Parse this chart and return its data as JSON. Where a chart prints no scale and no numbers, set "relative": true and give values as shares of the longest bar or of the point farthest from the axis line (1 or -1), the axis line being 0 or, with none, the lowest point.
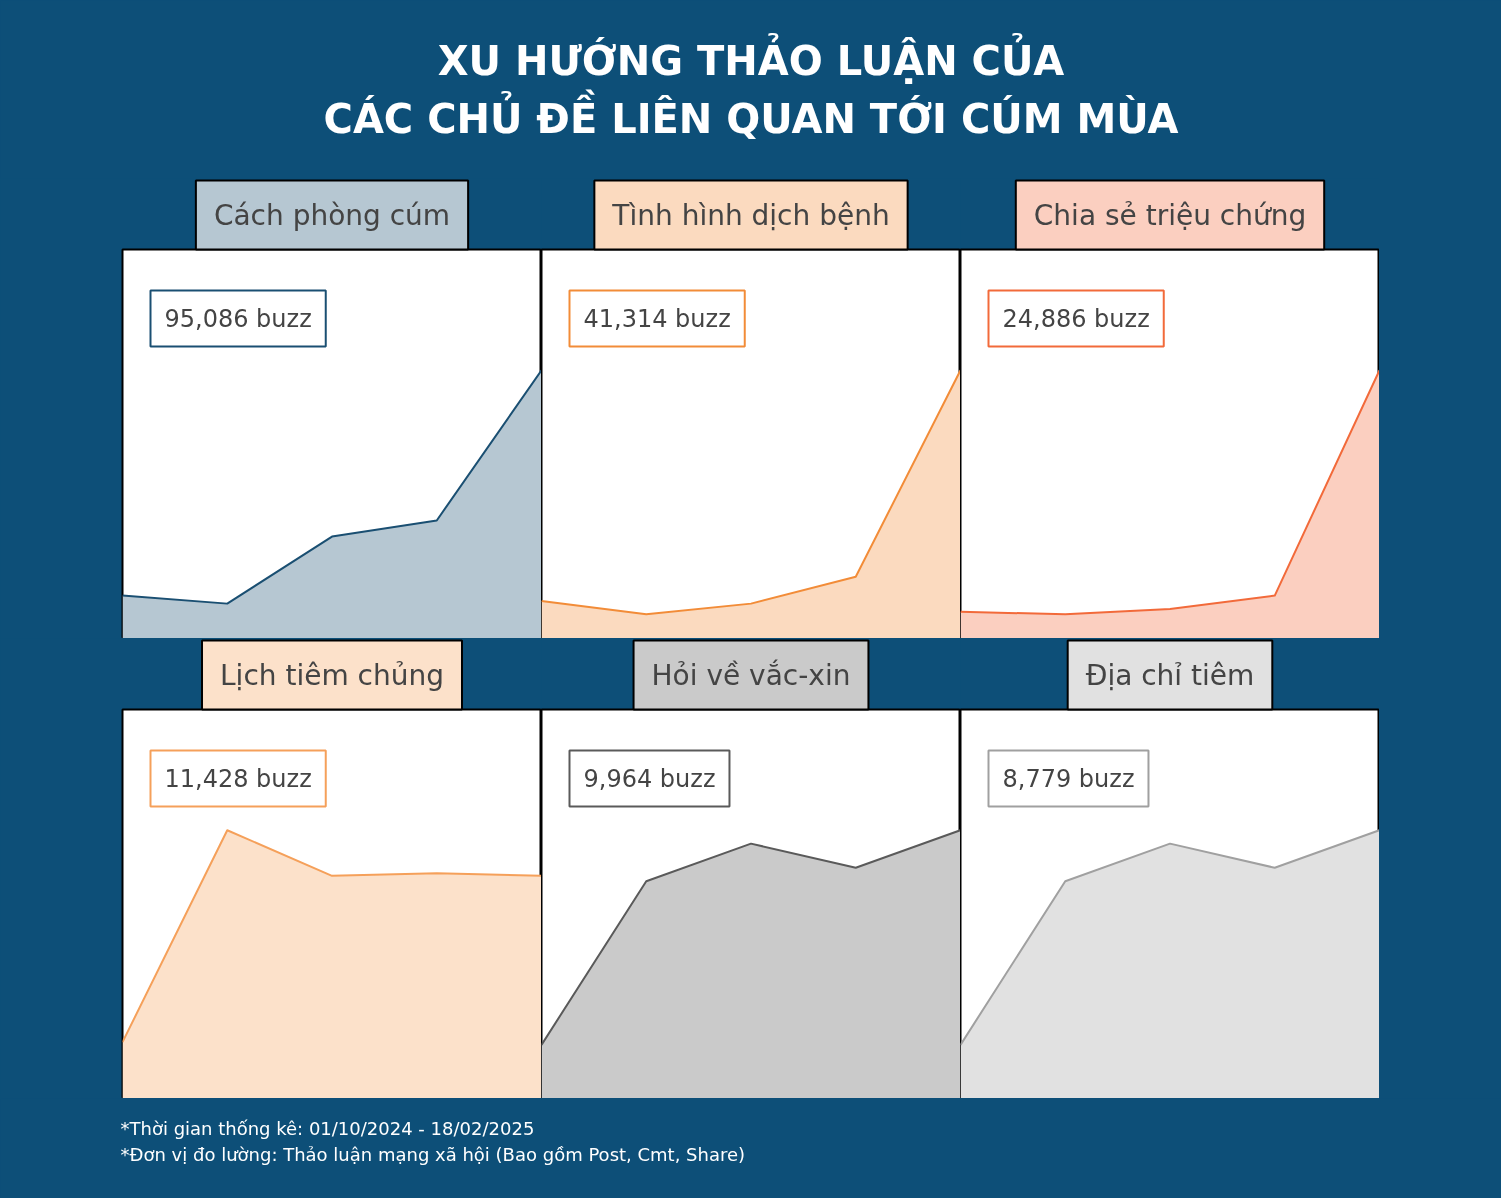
{
  "chart_data": [
    {
      "type": "other",
      "title": "XU HƯỚNG THẢO LUẬN CỦA\nCÁC CHỦ ĐỀ LIÊN QUAN TỚI CÚM MÙA"
    },
    {
      "type": "area",
      "title": "Cách phòng cúm",
      "relative": true,
      "categories": [
        null,
        null,
        null,
        null,
        null
      ],
      "annotations": [
        "95,086 buzz"
      ],
      "series": [
        {
          "color": "#1a4f72",
          "values": [
            0.16,
            0.13,
            0.38,
            0.44,
            1
          ]
        }
      ]
    },
    {
      "type": "area",
      "title": "Tình hình dịch bệnh",
      "relative": true,
      "categories": [
        null,
        null,
        null,
        null,
        null
      ],
      "annotations": [
        "41,314 buzz"
      ],
      "series": [
        {
          "color": "#f28c38",
          "values": [
            0.14,
            0.09,
            0.13,
            0.23,
            1
          ]
        }
      ]
    },
    {
      "type": "area",
      "title": "Chia sẻ triệu chứng",
      "relative": true,
      "categories": [
        null,
        null,
        null,
        null,
        null
      ],
      "annotations": [
        "24,886 buzz"
      ],
      "series": [
        {
          "color": "#f26a3a",
          "values": [
            0.1,
            0.09,
            0.11,
            0.16,
            1
          ]
        }
      ]
    },
    {
      "type": "area",
      "title": "Lịch tiêm chủng",
      "relative": true,
      "categories": [
        null,
        null,
        null,
        null,
        null
      ],
      "annotations": [
        "11,428 buzz"
      ],
      "series": [
        {
          "color": "#f5a05a",
          "values": [
            0.21,
            1,
            0.83,
            0.84,
            0.83
          ]
        }
      ]
    },
    {
      "type": "area",
      "title": "Hỏi về vắc-xin",
      "relative": true,
      "categories": [
        null,
        null,
        null,
        null,
        null
      ],
      "annotations": [
        "9,964 buzz"
      ],
      "series": [
        {
          "color": "#5a5a5a",
          "values": [
            0.2,
            0.81,
            0.95,
            0.86,
            1
          ]
        }
      ]
    },
    {
      "type": "area",
      "title": "Địa chỉ tiêm",
      "relative": true,
      "categories": [
        null,
        null,
        null,
        null,
        null
      ],
      "annotations": [
        "8,779 buzz"
      ],
      "series": [
        {
          "color": "#a0a0a0",
          "values": [
            0.2,
            0.81,
            0.95,
            0.86,
            1
          ]
        }
      ]
    },
    {
      "type": "other",
      "annotations": [
        "*Thời gian thống kê: 01/10/2024 - 18/02/2025",
        "*Đơn vị đo lường: Thảo luận mạng xã hội (Bao gồm Post, Cmt, Share)"
      ]
    }
  ]
}
